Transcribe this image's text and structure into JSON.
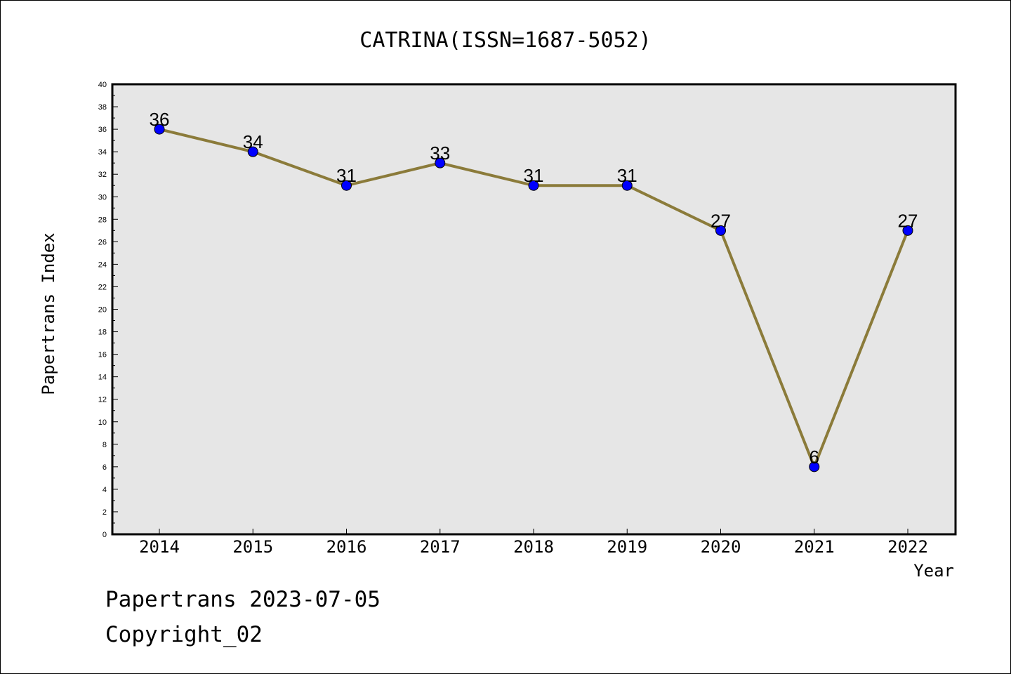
{
  "chart_data": {
    "type": "line",
    "title": "CATRINA(ISSN=1687-5052)",
    "xlabel": "Year",
    "ylabel": "Papertrans Index",
    "categories": [
      "2014",
      "2015",
      "2016",
      "2017",
      "2018",
      "2019",
      "2020",
      "2021",
      "2022"
    ],
    "values": [
      36,
      34,
      31,
      33,
      31,
      31,
      27,
      6,
      27
    ],
    "ylim": [
      0,
      40
    ],
    "ytick_step": 2,
    "ytick_labels": [
      "0",
      "2",
      "4",
      "6",
      "8",
      "10",
      "12",
      "14",
      "16",
      "18",
      "20",
      "22",
      "24",
      "26",
      "28",
      "30",
      "32",
      "34",
      "36",
      "38",
      "40"
    ],
    "data_labels": [
      "36",
      "34",
      "31",
      "33",
      "31",
      "31",
      "27",
      "6",
      "27"
    ],
    "grid": false,
    "colors": {
      "line": "#8B7B3A",
      "marker": "#0000FF",
      "plot_background": "#E6E6E6",
      "axis": "#000000"
    }
  },
  "footer": {
    "line1": "Papertrans 2023-07-05",
    "line2": "Copyright_02"
  }
}
